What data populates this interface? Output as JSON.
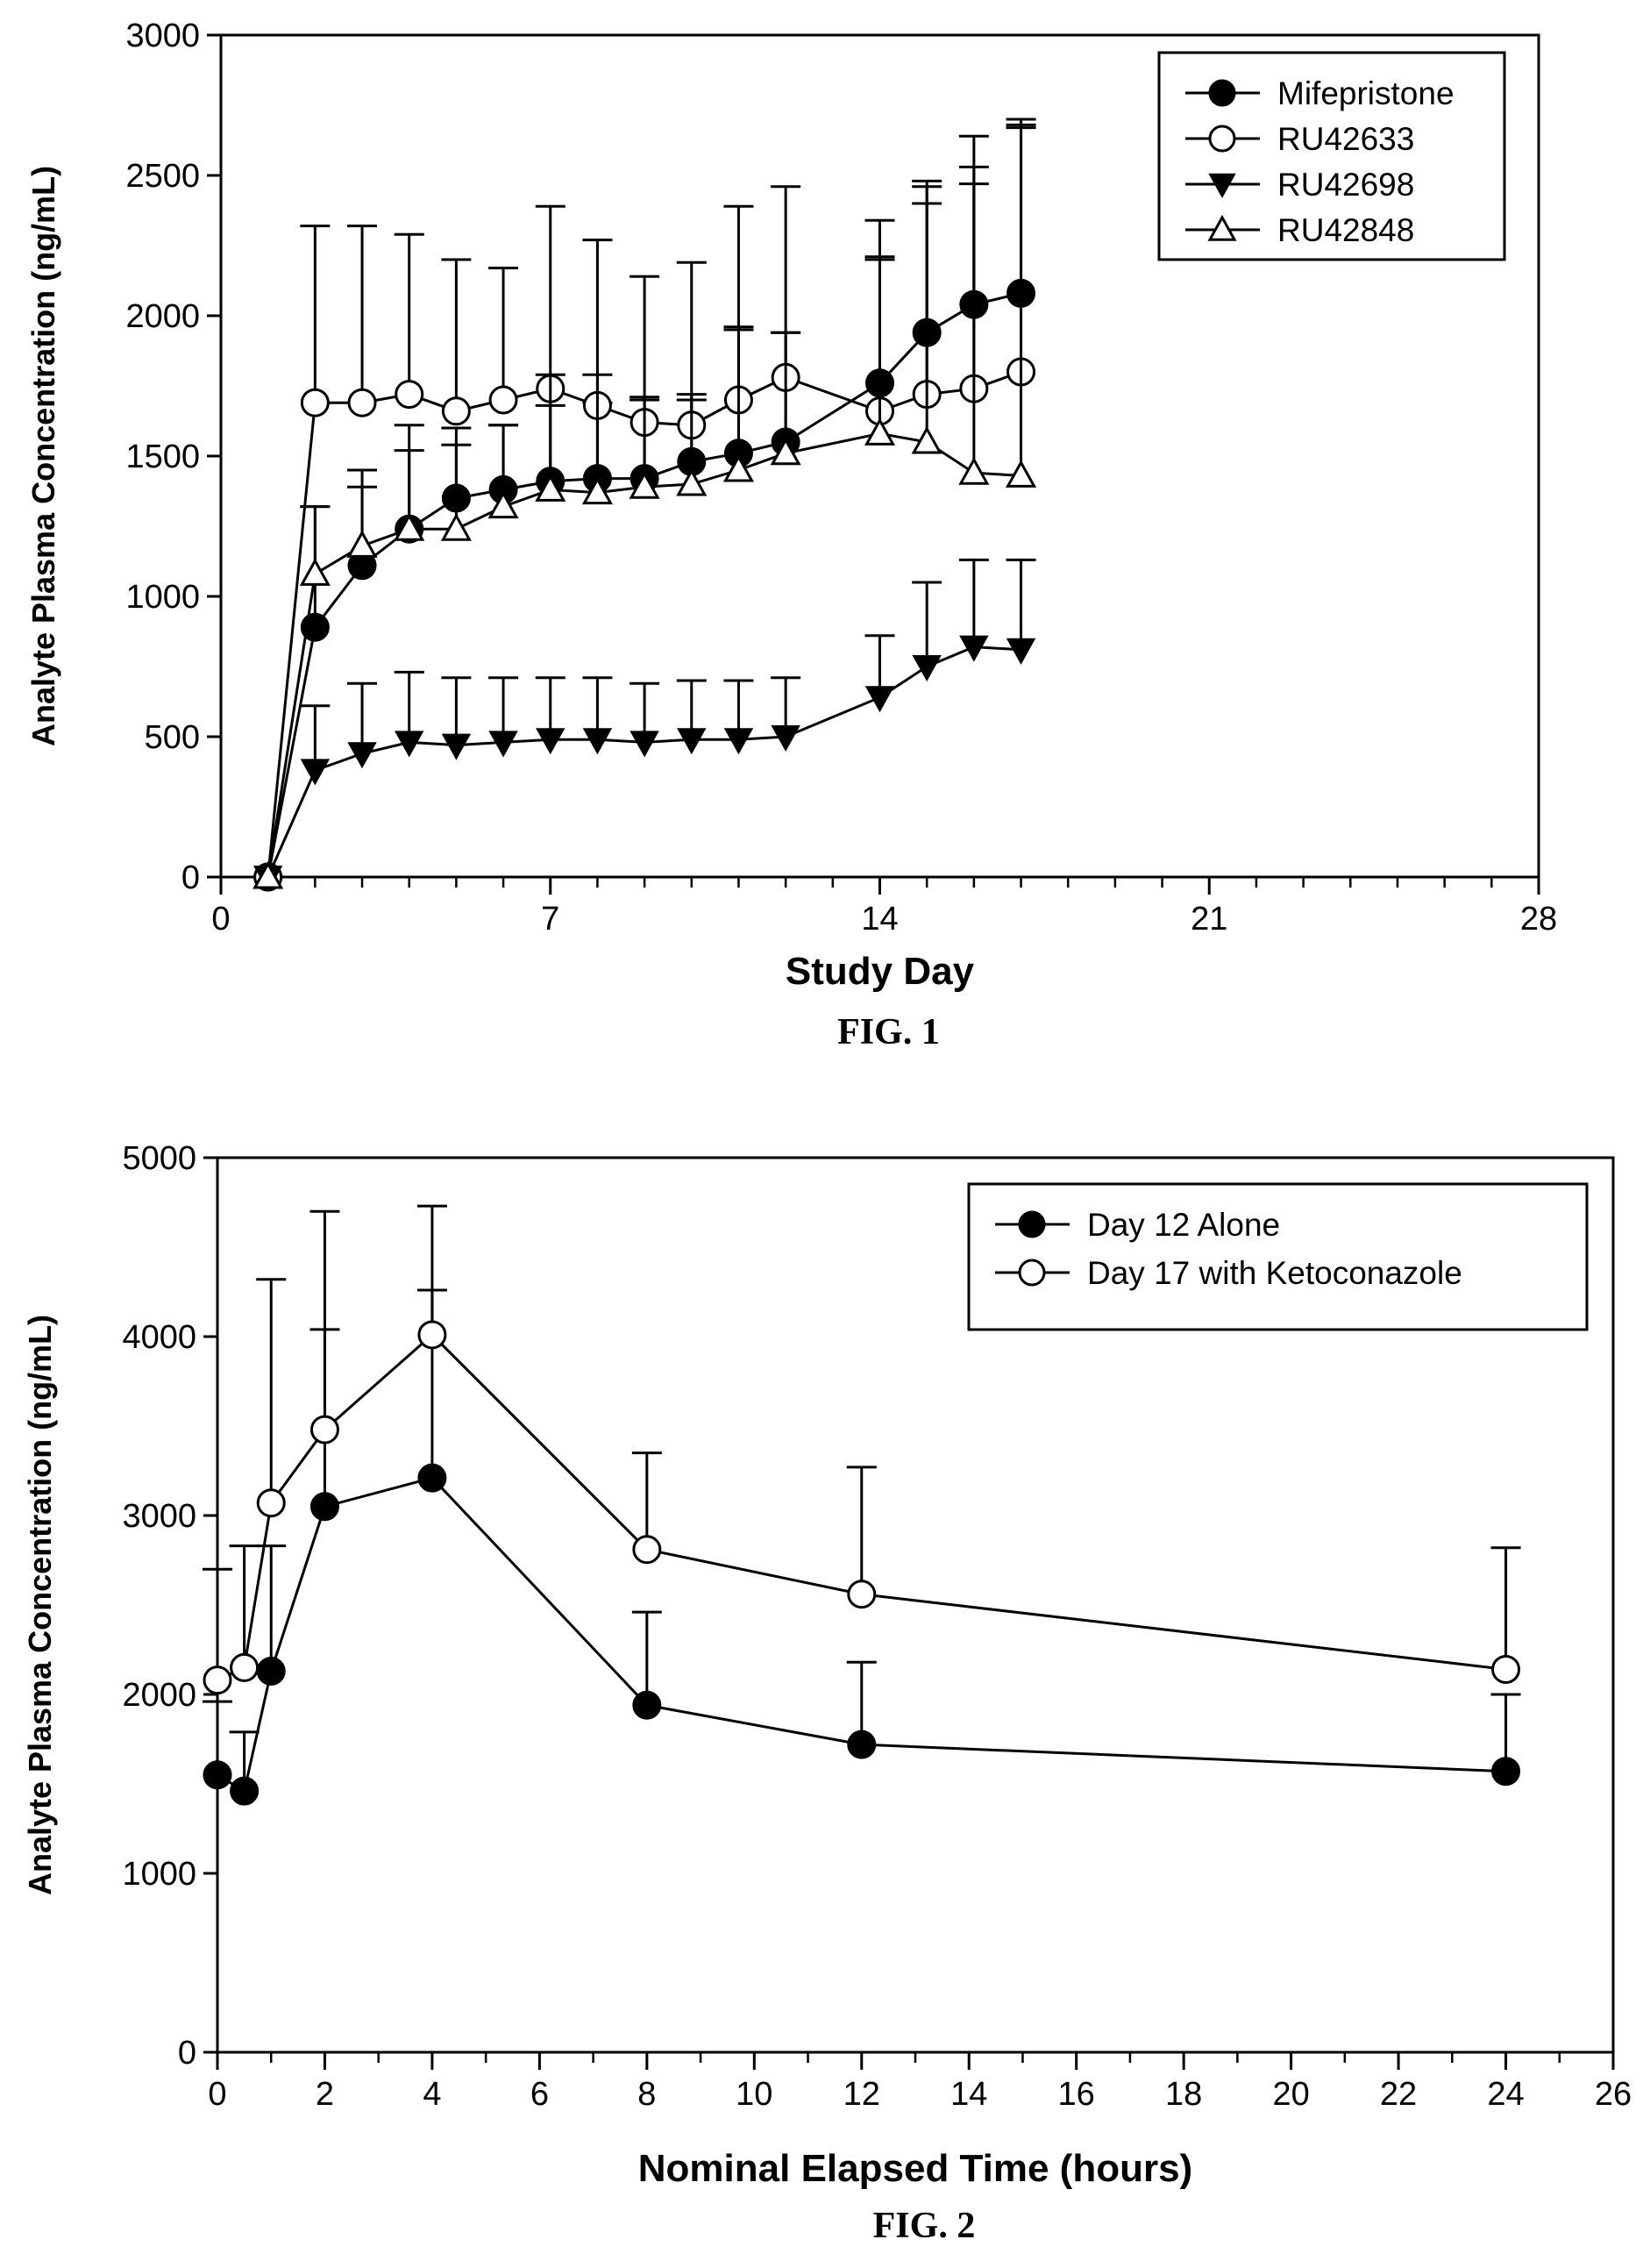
{
  "chart_data": [
    {
      "type": "line",
      "caption": "FIG. 1",
      "xlabel": "Study Day",
      "ylabel": "Analyte Plasma Concentration (ng/mL)",
      "xlim": [
        0,
        28
      ],
      "ylim": [
        0,
        3000
      ],
      "xticks": [
        0,
        7,
        14,
        21,
        28
      ],
      "yticks": [
        0,
        500,
        1000,
        1500,
        2000,
        2500,
        3000
      ],
      "x_minor_step": 1,
      "legend_position": "top-right",
      "series": [
        {
          "name": "Mifepristone",
          "marker": "filled-circle",
          "x": [
            1,
            2,
            3,
            4,
            5,
            6,
            7,
            8,
            9,
            10,
            11,
            12,
            14,
            15,
            16,
            17
          ],
          "y": [
            0,
            890,
            1110,
            1240,
            1350,
            1380,
            1410,
            1420,
            1420,
            1480,
            1510,
            1550,
            1760,
            1940,
            2040,
            2080
          ],
          "error_upper": [
            0,
            1320,
            1450,
            1610,
            1600,
            1610,
            1680,
            1690,
            1700,
            1700,
            1950,
            1940,
            2200,
            2480,
            2530,
            2680
          ]
        },
        {
          "name": "RU42633",
          "marker": "open-circle",
          "x": [
            1,
            2,
            3,
            4,
            5,
            6,
            7,
            8,
            9,
            10,
            11,
            12,
            14,
            15,
            16,
            17
          ],
          "y": [
            0,
            1690,
            1690,
            1720,
            1660,
            1700,
            1740,
            1680,
            1620,
            1610,
            1700,
            1780,
            1660,
            1720,
            1740,
            1800
          ],
          "error_upper": [
            0,
            2320,
            2320,
            2290,
            2200,
            2170,
            2390,
            2270,
            2140,
            2190,
            2390,
            2460,
            2340,
            2460,
            2640,
            2700
          ]
        },
        {
          "name": "RU42698",
          "marker": "filled-triangle-down",
          "x": [
            1,
            2,
            3,
            4,
            5,
            6,
            7,
            8,
            9,
            10,
            11,
            12,
            14,
            15,
            16,
            17
          ],
          "y": [
            0,
            380,
            440,
            480,
            470,
            480,
            490,
            490,
            480,
            490,
            490,
            500,
            640,
            750,
            820,
            810
          ],
          "error_upper": [
            0,
            610,
            690,
            730,
            710,
            710,
            710,
            710,
            690,
            700,
            700,
            710,
            860,
            1050,
            1130,
            1130
          ]
        },
        {
          "name": "RU42848",
          "marker": "open-triangle-up",
          "x": [
            1,
            2,
            3,
            4,
            5,
            6,
            7,
            8,
            9,
            10,
            11,
            12,
            14,
            15,
            16,
            17
          ],
          "y": [
            0,
            1080,
            1180,
            1240,
            1240,
            1320,
            1380,
            1370,
            1390,
            1400,
            1450,
            1510,
            1580,
            1550,
            1440,
            1430
          ],
          "error_upper": [
            0,
            1320,
            1390,
            1520,
            1540,
            1610,
            1790,
            1790,
            1710,
            1720,
            1960,
            1940,
            2210,
            2400,
            2470,
            2670
          ]
        }
      ]
    },
    {
      "type": "line",
      "caption": "FIG. 2",
      "xlabel": "Nominal Elapsed Time (hours)",
      "ylabel": "Analyte Plasma Concentration (ng/mL)",
      "xlim": [
        0,
        26
      ],
      "ylim": [
        0,
        5000
      ],
      "xticks": [
        0,
        2,
        4,
        6,
        8,
        10,
        12,
        14,
        16,
        18,
        20,
        22,
        24,
        26
      ],
      "yticks": [
        0,
        1000,
        2000,
        3000,
        4000,
        5000
      ],
      "x_minor_step": 1,
      "legend_position": "top-right",
      "series": [
        {
          "name": "Day 12 Alone",
          "marker": "filled-circle",
          "x": [
            0,
            0.5,
            1,
            2,
            4,
            8,
            12,
            24
          ],
          "y": [
            1550,
            1460,
            2130,
            3050,
            3210,
            1940,
            1720,
            1570
          ],
          "error_upper": [
            1960,
            1790,
            2830,
            4040,
            4260,
            2460,
            2180,
            2000
          ]
        },
        {
          "name": "Day 17 with Ketoconazole",
          "marker": "open-circle",
          "x": [
            0,
            0.5,
            1,
            2,
            4,
            8,
            12,
            24
          ],
          "y": [
            2080,
            2150,
            3070,
            3480,
            4010,
            2810,
            2560,
            2140
          ],
          "error_upper": [
            2700,
            2830,
            4320,
            4700,
            4730,
            3350,
            3270,
            2820
          ]
        }
      ]
    }
  ]
}
